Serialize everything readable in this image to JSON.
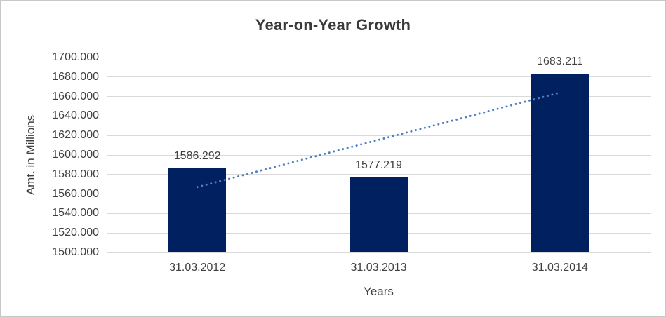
{
  "frame": {
    "background": "#ffffff",
    "border_color": "#c8c8c8"
  },
  "chart_data": {
    "type": "bar",
    "title": "Year-on-Year Growth",
    "xlabel": "Years",
    "ylabel": "Amt. in Millions",
    "categories": [
      "31.03.2012",
      "31.03.2013",
      "31.03.2014"
    ],
    "values": [
      1586.292,
      1577.219,
      1683.211
    ],
    "value_labels": [
      "1586.292",
      "1577.219",
      "1683.211"
    ],
    "ylim": [
      1500,
      1700
    ],
    "ytick_step": 20,
    "ytick_labels": [
      "1700.000",
      "1680.000",
      "1660.000",
      "1640.000",
      "1620.000",
      "1600.000",
      "1580.000",
      "1560.000",
      "1540.000",
      "1520.000",
      "1500.000"
    ],
    "grid": true,
    "legend": false,
    "bar_color": "#002060",
    "gridline_color": "#d9d9d9",
    "text_color": "#404040",
    "title_color": "#3a3a3a",
    "trendline": {
      "type": "linear",
      "style": "dotted",
      "color": "#4e80c4",
      "start_value": 1567.1,
      "end_value": 1664.0
    }
  }
}
